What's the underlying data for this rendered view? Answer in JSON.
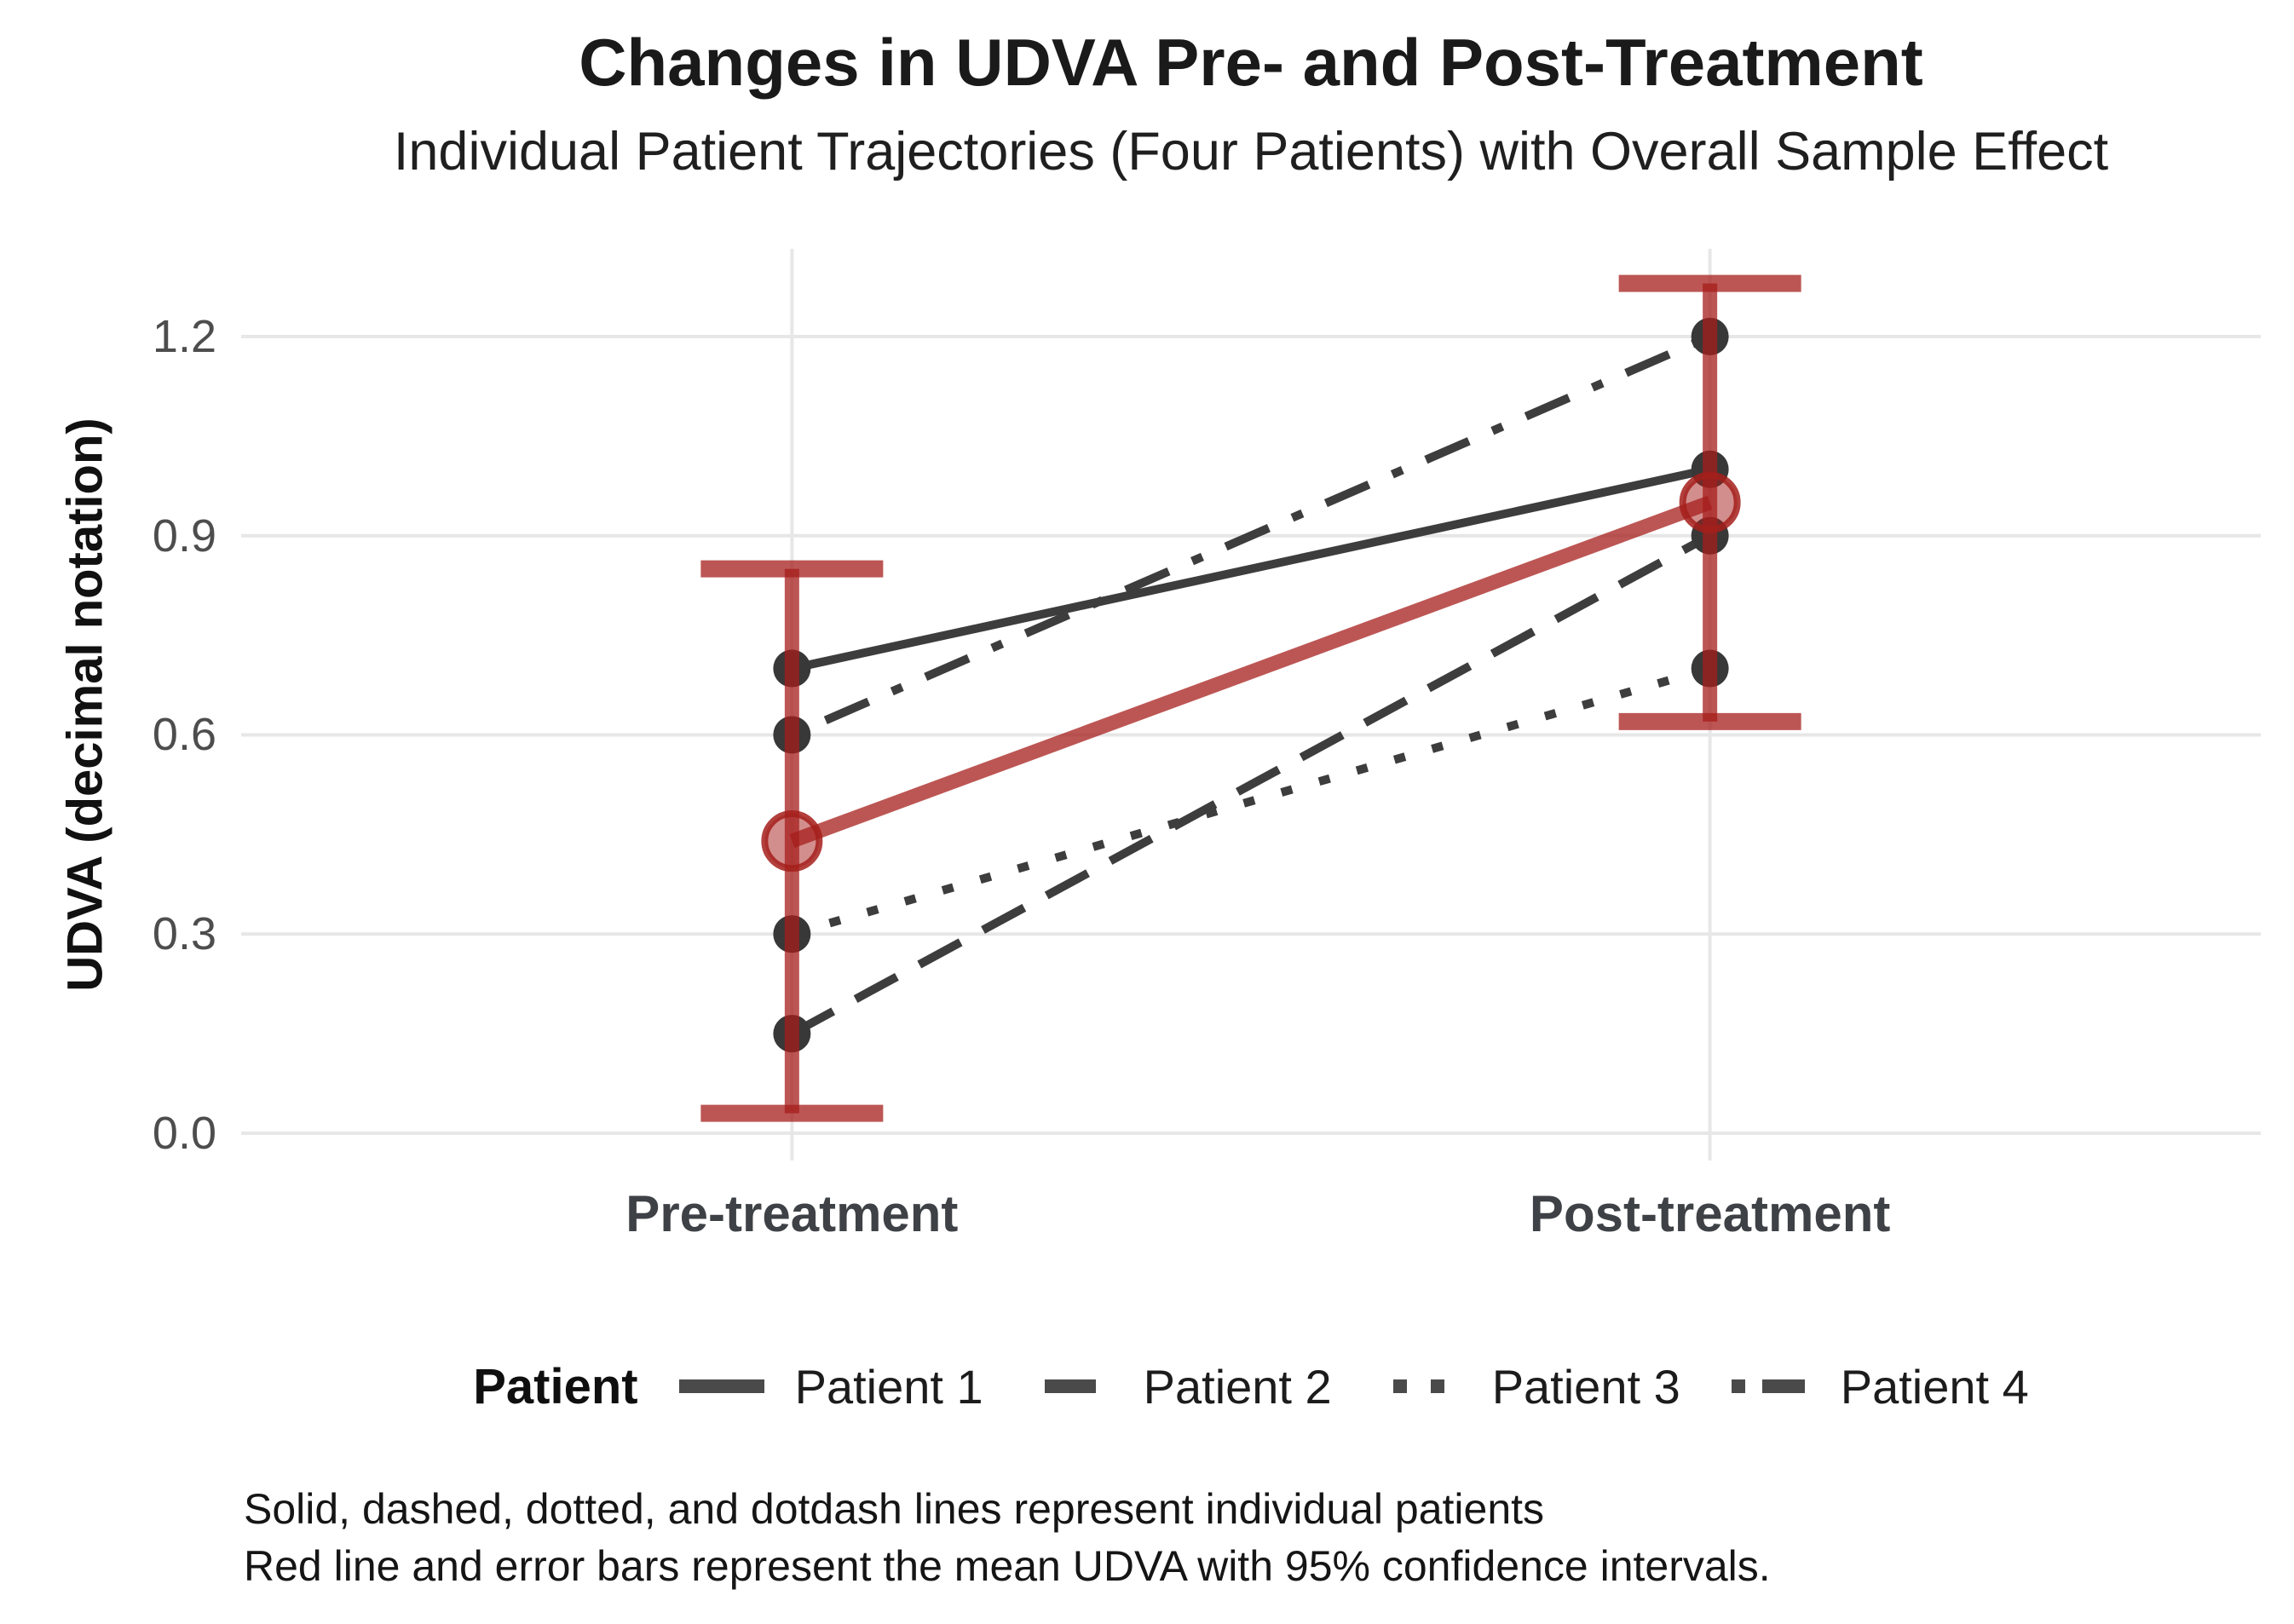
{
  "title": "Changes in UDVA Pre- and Post-Treatment",
  "subtitle": "Individual Patient Trajectories (Four Patients) with Overall Sample Effect",
  "y_axis": {
    "label": "UDVA (decimal notation)",
    "tick_labels": [
      "0.0",
      "0.3",
      "0.6",
      "0.9",
      "1.2"
    ],
    "tick_values": [
      0.0,
      0.3,
      0.6,
      0.9,
      1.2
    ]
  },
  "x_axis": {
    "categories": [
      "Pre-treatment",
      "Post-treatment"
    ]
  },
  "legend": {
    "title": "Patient",
    "items": [
      {
        "label": "Patient 1",
        "linetype": "solid"
      },
      {
        "label": "Patient 2",
        "linetype": "dashed"
      },
      {
        "label": "Patient 3",
        "linetype": "dotted"
      },
      {
        "label": "Patient 4",
        "linetype": "dotdash"
      }
    ]
  },
  "caption": {
    "lines": [
      "Solid, dashed, dotted, and dotdash lines represent individual patients",
      "Red line and error bars represent the mean UDVA with 95% confidence intervals."
    ]
  },
  "colors": {
    "patient_line": "#3d3d3d",
    "patient_point": "#383838",
    "legend_key": "#4a4a4a",
    "mean_red_base": "165,30,27",
    "grid": "#e7e7e7"
  },
  "chart_data": {
    "type": "line",
    "x": [
      "Pre-treatment",
      "Post-treatment"
    ],
    "series": [
      {
        "name": "Patient 1",
        "linetype": "solid",
        "values": [
          0.7,
          1.0
        ]
      },
      {
        "name": "Patient 2",
        "linetype": "dashed",
        "values": [
          0.15,
          0.9
        ]
      },
      {
        "name": "Patient 3",
        "linetype": "dotted",
        "values": [
          0.3,
          0.7
        ]
      },
      {
        "name": "Patient 4",
        "linetype": "dotdash",
        "values": [
          0.6,
          1.2
        ]
      }
    ],
    "mean_series": {
      "name": "Mean UDVA",
      "values": [
        0.44,
        0.95
      ],
      "ci_lower": [
        0.03,
        0.62
      ],
      "ci_upper": [
        0.85,
        1.28
      ],
      "ci_level": "95%"
    },
    "title": "Changes in UDVA Pre- and Post-Treatment",
    "subtitle": "Individual Patient Trajectories (Four Patients) with Overall Sample Effect",
    "xlabel": "",
    "ylabel": "UDVA (decimal notation)",
    "ylim": [
      0.0,
      1.3
    ],
    "y_gridlines": [
      0.0,
      0.3,
      0.6,
      0.9,
      1.2
    ],
    "grid": "on",
    "legend_position": "bottom"
  }
}
